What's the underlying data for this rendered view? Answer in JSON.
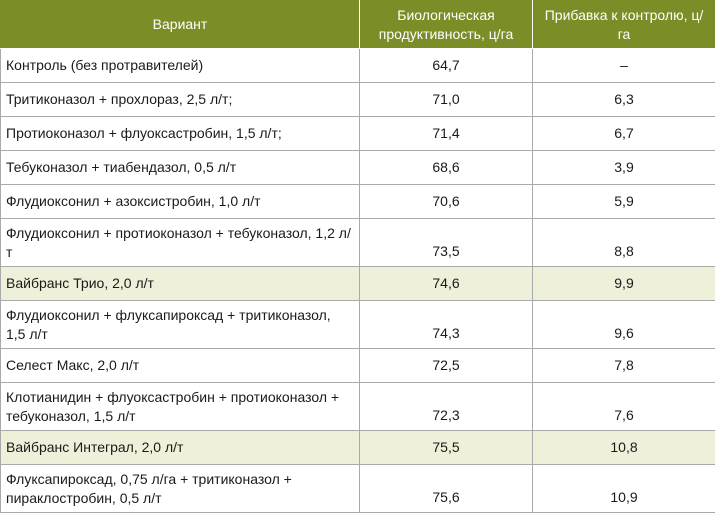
{
  "table": {
    "headers": [
      "Вариант",
      "Биологическая продуктивность, ц/га",
      "Прибавка к контролю, ц/га"
    ],
    "rows": [
      {
        "variant": "Контроль (без протравителей)",
        "productivity": "64,7",
        "increase": "–",
        "highlight": false,
        "lines": 1
      },
      {
        "variant": "Тритиконазол + прохлораз, 2,5 л/т;",
        "productivity": "71,0",
        "increase": "6,3",
        "highlight": false,
        "lines": 1
      },
      {
        "variant": "Протиоконазол + флуоксастробин, 1,5 л/т;",
        "productivity": "71,4",
        "increase": "6,7",
        "highlight": false,
        "lines": 1
      },
      {
        "variant": "Тебуконазол + тиабендазол, 0,5 л/т",
        "productivity": "68,6",
        "increase": "3,9",
        "highlight": false,
        "lines": 1
      },
      {
        "variant": "Флудиоксонил + азоксистробин, 1,0 л/т",
        "productivity": "70,6",
        "increase": "5,9",
        "highlight": false,
        "lines": 1
      },
      {
        "variant": "Флудиоксонил + протиоконазол + тебуконазол, 1,2 л/т",
        "productivity": "73,5",
        "increase": "8,8",
        "highlight": false,
        "lines": 2
      },
      {
        "variant": "Вайбранс Трио, 2,0 л/т",
        "productivity": "74,6",
        "increase": "9,9",
        "highlight": true,
        "lines": 1
      },
      {
        "variant": "Флудиоксонил + флуксапироксад + тритиконазол, 1,5 л/т",
        "productivity": "74,3",
        "increase": "9,6",
        "highlight": false,
        "lines": 2
      },
      {
        "variant": "Селест Макс, 2,0 л/т",
        "productivity": "72,5",
        "increase": "7,8",
        "highlight": false,
        "lines": 1
      },
      {
        "variant": "Клотианидин + флуоксастробин + протиоконазол + тебуконазол, 1,5 л/т",
        "productivity": "72,3",
        "increase": "7,6",
        "highlight": false,
        "lines": 2
      },
      {
        "variant": "Вайбранс Интеграл, 2,0 л/т",
        "productivity": "75,5",
        "increase": "10,8",
        "highlight": true,
        "lines": 1
      },
      {
        "variant": "Флуксапироксад, 0,75 л/га + тритиконазол + пираклостробин, 0,5 л/т",
        "productivity": "75,6",
        "increase": "10,9",
        "highlight": false,
        "lines": 2
      }
    ]
  },
  "colors": {
    "header_bg": "#7b8d26",
    "highlight_bg": "#eef0d9",
    "border": "#a9a9a9"
  }
}
